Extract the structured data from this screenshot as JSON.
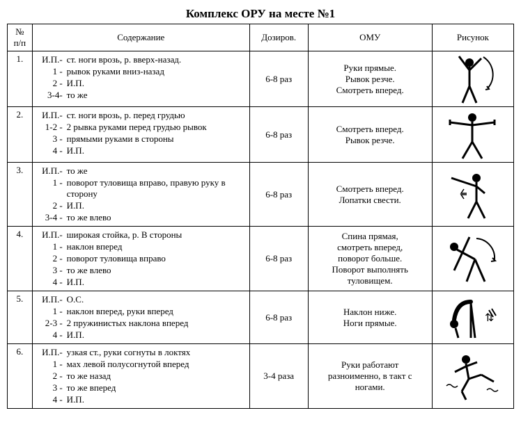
{
  "title": "Комплекс ОРУ на месте №1",
  "headers": {
    "num": "№ п/п",
    "content": "Содержание",
    "dose": "Дозиров.",
    "omu": "ОМУ",
    "pic": "Рисунок"
  },
  "rows": [
    {
      "num": "1.",
      "content": [
        {
          "k": "И.П.-",
          "v": "ст. ноги врозь, р. вверх-назад."
        },
        {
          "k": "1 -",
          "v": "рывок руками вниз-назад"
        },
        {
          "k": "2 -",
          "v": "И.П."
        },
        {
          "k": "3-4-",
          "v": "то же"
        }
      ],
      "dose": "6-8 раз",
      "omu": "Руки прямые.\nРывок резче.\nСмотреть вперед."
    },
    {
      "num": "2.",
      "content": [
        {
          "k": "И.П.-",
          "v": "ст. ноги врозь, р. перед грудью"
        },
        {
          "k": "1-2 -",
          "v": "2 рывка руками перед грудью рывок"
        },
        {
          "k": "3 -",
          "v": "прямыми руками в стороны"
        },
        {
          "k": "4 -",
          "v": "И.П."
        }
      ],
      "dose": "6-8 раз",
      "omu": "Смотреть вперед.\nРывок резче."
    },
    {
      "num": "3.",
      "content": [
        {
          "k": "И.П.-",
          "v": "то же"
        },
        {
          "k": "1 -",
          "v": "поворот туловища вправо, правую руку в сторону"
        },
        {
          "k": "2 -",
          "v": "И.П."
        },
        {
          "k": "3-4 -",
          "v": "то же влево"
        }
      ],
      "dose": "6-8 раз",
      "omu": "Смотреть вперед.\nЛопатки свести."
    },
    {
      "num": "4.",
      "content": [
        {
          "k": "И.П.-",
          "v": "широкая стойка, р. В стороны"
        },
        {
          "k": "1 -",
          "v": "наклон вперед"
        },
        {
          "k": "2 -",
          "v": "поворот туловища вправо"
        },
        {
          "k": "3 -",
          "v": "то же влево"
        },
        {
          "k": "4 -",
          "v": " И.П."
        }
      ],
      "dose": "6-8 раз",
      "omu": "Спина прямая,\nсмотреть вперед,\nповорот больше.\nПоворот выполнять\nтуловищем."
    },
    {
      "num": "5.",
      "content": [
        {
          "k": "И.П.-",
          "v": "О.С."
        },
        {
          "k": "1 -",
          "v": "наклон вперед, руки вперед"
        },
        {
          "k": "2-3 -",
          "v": "2 пружинистых наклона вперед"
        },
        {
          "k": "4 -",
          "v": "И.П."
        }
      ],
      "dose": "6-8 раз",
      "omu": "Наклон ниже.\nНоги прямые."
    },
    {
      "num": "6.",
      "content": [
        {
          "k": "И.П.-",
          "v": "узкая ст., руки согнуты в локтях"
        },
        {
          "k": "1 -",
          "v": "мах левой полусогнутой вперед"
        },
        {
          "k": "2 -",
          "v": "то же назад"
        },
        {
          "k": "3 -",
          "v": "то же вперед"
        },
        {
          "k": "4 -",
          "v": "И.П."
        }
      ],
      "dose": "3-4 раза",
      "omu": "Руки работают\nразноименно, в такт с\nногами."
    }
  ],
  "svg": {
    "stroke": "#000000",
    "fill": "#000000",
    "stroke_width": 3
  }
}
